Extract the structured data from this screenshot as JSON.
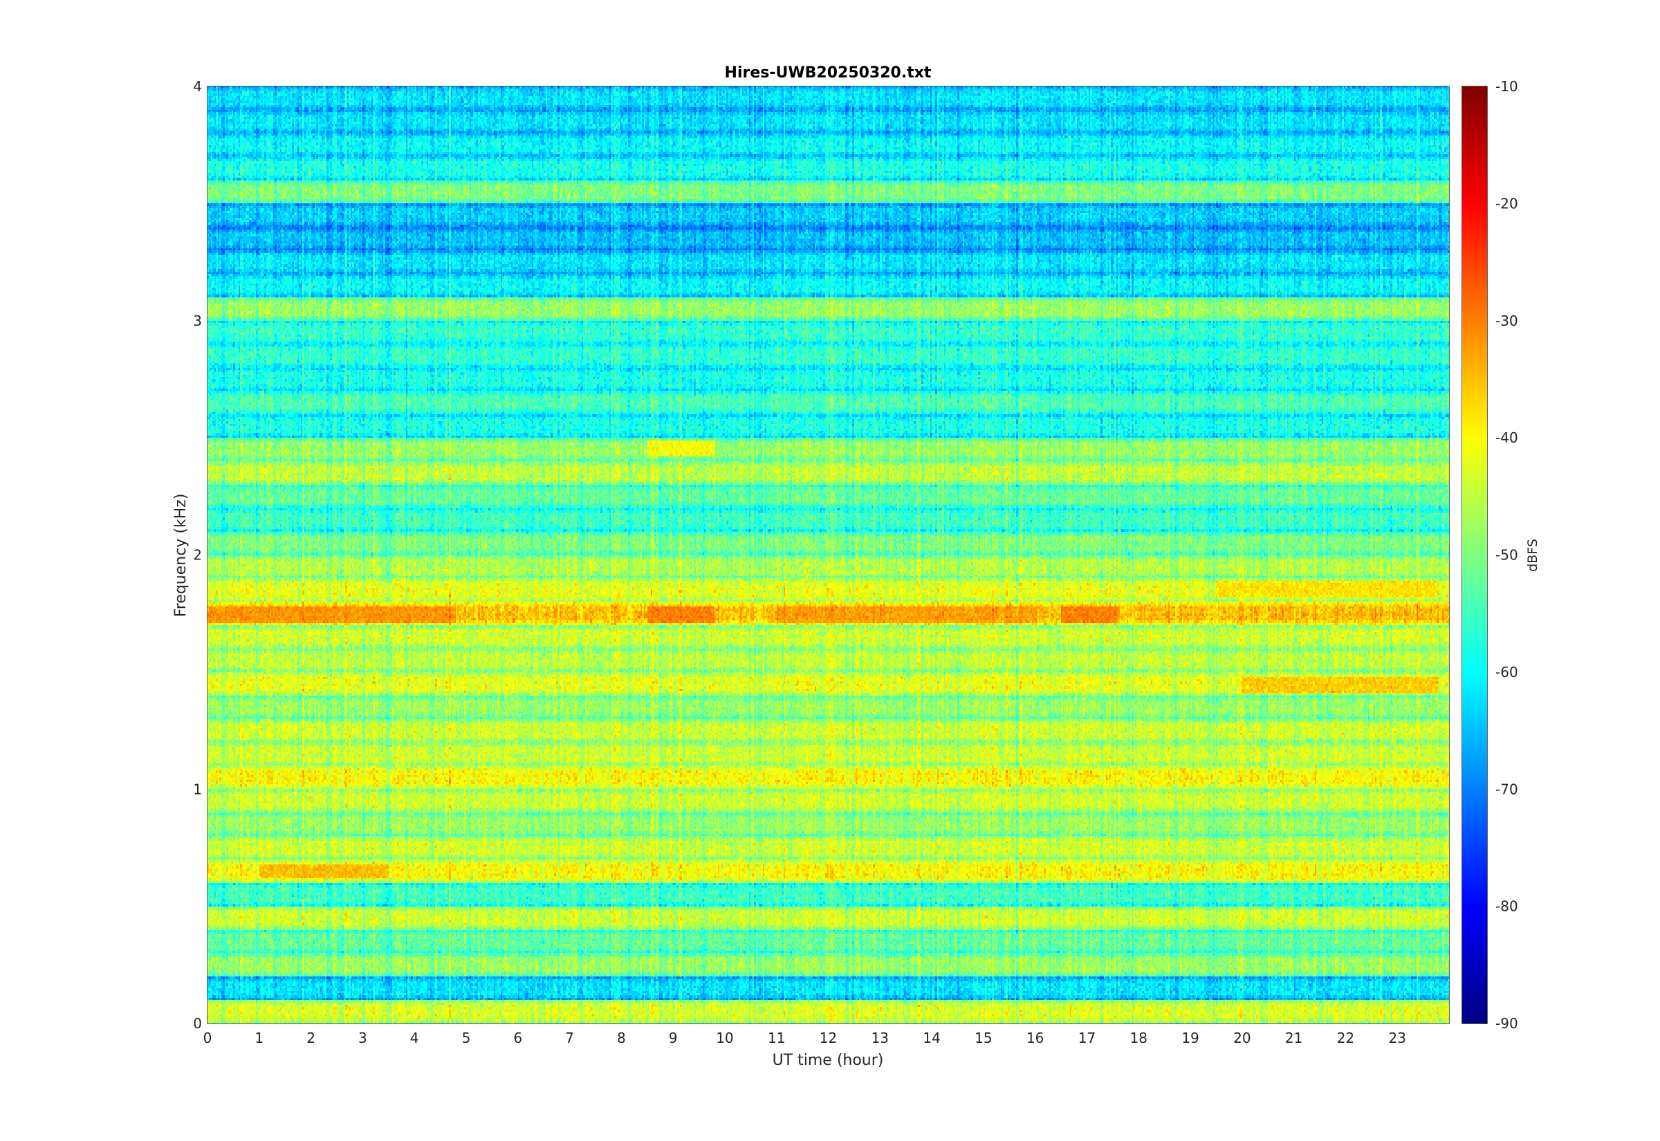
{
  "chart_data": {
    "type": "heatmap",
    "title": "Hires-UWB20250320.txt",
    "xlabel": "UT time (hour)",
    "ylabel": "Frequency (kHz)",
    "xlim": [
      0,
      24
    ],
    "ylim": [
      0,
      4
    ],
    "xticks": [
      0,
      1,
      2,
      3,
      4,
      5,
      6,
      7,
      8,
      9,
      10,
      11,
      12,
      13,
      14,
      15,
      16,
      17,
      18,
      19,
      20,
      21,
      22,
      23
    ],
    "xtick_labels": [
      "0",
      "1",
      "2",
      "3",
      "4",
      "5",
      "6",
      "7",
      "8",
      "9",
      "10",
      "11",
      "12",
      "13",
      "14",
      "15",
      "16",
      "17",
      "18",
      "19",
      "20",
      "21",
      "22",
      "23"
    ],
    "yticks": [
      0,
      1,
      2,
      3,
      4
    ],
    "ytick_labels": [
      "0",
      "1",
      "2",
      "3",
      "4"
    ],
    "colormap": "jet",
    "colorbar": {
      "label": "dBFS",
      "limits": [
        -90,
        -10
      ],
      "ticks": [
        -90,
        -80,
        -70,
        -60,
        -50,
        -40,
        -30,
        -20,
        -10
      ],
      "tick_labels": [
        "-90",
        "-80",
        "-70",
        "-60",
        "-50",
        "-40",
        "-30",
        "-20",
        "-10"
      ]
    },
    "bands": [
      {
        "freq_khz": 0.05,
        "level_dbfs": -43
      },
      {
        "freq_khz": 0.15,
        "level_dbfs": -62
      },
      {
        "freq_khz": 0.25,
        "level_dbfs": -48
      },
      {
        "freq_khz": 0.35,
        "level_dbfs": -52
      },
      {
        "freq_khz": 0.45,
        "level_dbfs": -44
      },
      {
        "freq_khz": 0.55,
        "level_dbfs": -55
      },
      {
        "freq_khz": 0.65,
        "level_dbfs": -40
      },
      {
        "freq_khz": 0.75,
        "level_dbfs": -44
      },
      {
        "freq_khz": 0.85,
        "level_dbfs": -48
      },
      {
        "freq_khz": 0.95,
        "level_dbfs": -44
      },
      {
        "freq_khz": 1.05,
        "level_dbfs": -40
      },
      {
        "freq_khz": 1.15,
        "level_dbfs": -44
      },
      {
        "freq_khz": 1.25,
        "level_dbfs": -44
      },
      {
        "freq_khz": 1.35,
        "level_dbfs": -48
      },
      {
        "freq_khz": 1.45,
        "level_dbfs": -42
      },
      {
        "freq_khz": 1.55,
        "level_dbfs": -45
      },
      {
        "freq_khz": 1.65,
        "level_dbfs": -44
      },
      {
        "freq_khz": 1.75,
        "level_dbfs": -35
      },
      {
        "freq_khz": 1.85,
        "level_dbfs": -42
      },
      {
        "freq_khz": 1.95,
        "level_dbfs": -46
      },
      {
        "freq_khz": 2.05,
        "level_dbfs": -50
      },
      {
        "freq_khz": 2.15,
        "level_dbfs": -55
      },
      {
        "freq_khz": 2.25,
        "level_dbfs": -52
      },
      {
        "freq_khz": 2.35,
        "level_dbfs": -45
      },
      {
        "freq_khz": 2.45,
        "level_dbfs": -48
      },
      {
        "freq_khz": 2.55,
        "level_dbfs": -58
      },
      {
        "freq_khz": 2.65,
        "level_dbfs": -54
      },
      {
        "freq_khz": 2.75,
        "level_dbfs": -58
      },
      {
        "freq_khz": 2.85,
        "level_dbfs": -56
      },
      {
        "freq_khz": 2.95,
        "level_dbfs": -56
      },
      {
        "freq_khz": 3.05,
        "level_dbfs": -48
      },
      {
        "freq_khz": 3.15,
        "level_dbfs": -60
      },
      {
        "freq_khz": 3.25,
        "level_dbfs": -62
      },
      {
        "freq_khz": 3.35,
        "level_dbfs": -65
      },
      {
        "freq_khz": 3.45,
        "level_dbfs": -64
      },
      {
        "freq_khz": 3.55,
        "level_dbfs": -50
      },
      {
        "freq_khz": 3.65,
        "level_dbfs": -58
      },
      {
        "freq_khz": 3.75,
        "level_dbfs": -60
      },
      {
        "freq_khz": 3.85,
        "level_dbfs": -62
      },
      {
        "freq_khz": 3.95,
        "level_dbfs": -62
      }
    ],
    "hotspots": [
      {
        "t0": 0.0,
        "t1": 4.8,
        "freq_khz": 1.75,
        "level_dbfs": -32
      },
      {
        "t0": 8.5,
        "t1": 9.8,
        "freq_khz": 1.75,
        "level_dbfs": -30
      },
      {
        "t0": 11.0,
        "t1": 16.0,
        "freq_khz": 1.75,
        "level_dbfs": -33
      },
      {
        "t0": 16.5,
        "t1": 17.6,
        "freq_khz": 1.75,
        "level_dbfs": -30
      },
      {
        "t0": 1.0,
        "t1": 3.5,
        "freq_khz": 0.65,
        "level_dbfs": -35
      },
      {
        "t0": 8.5,
        "t1": 9.8,
        "freq_khz": 2.45,
        "level_dbfs": -40
      },
      {
        "t0": 19.5,
        "t1": 23.8,
        "freq_khz": 1.85,
        "level_dbfs": -38
      },
      {
        "t0": 20.0,
        "t1": 23.8,
        "freq_khz": 1.45,
        "level_dbfs": -36
      }
    ]
  }
}
